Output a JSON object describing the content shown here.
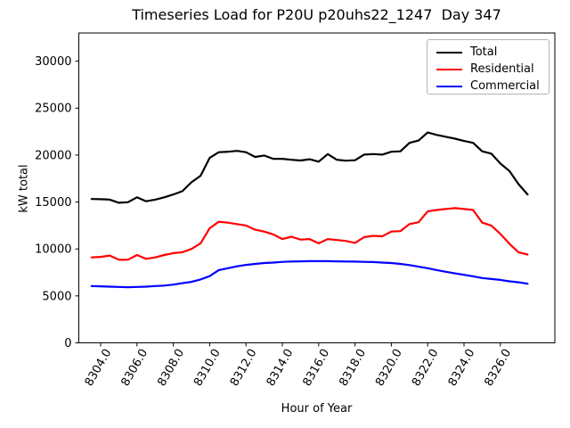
{
  "chart_data": {
    "type": "line",
    "title": "Timeseries Load for P20U p20uhs22_1247  Day 347",
    "xlabel": "Hour of Year",
    "ylabel": "kW total",
    "xlim": [
      8302.8,
      8329.0
    ],
    "ylim": [
      0,
      33000
    ],
    "grid": false,
    "xticks": [
      8304,
      8306,
      8308,
      8310,
      8312,
      8314,
      8316,
      8318,
      8320,
      8322,
      8324,
      8326
    ],
    "xtick_labels": [
      "8304.0",
      "8306.0",
      "8308.0",
      "8310.0",
      "8312.0",
      "8314.0",
      "8316.0",
      "8318.0",
      "8320.0",
      "8322.0",
      "8324.0",
      "8326.0"
    ],
    "yticks": [
      0,
      5000,
      10000,
      15000,
      20000,
      25000,
      30000
    ],
    "ytick_labels": [
      "0",
      "5000",
      "10000",
      "15000",
      "20000",
      "25000",
      "30000"
    ],
    "legend": {
      "position": "upper right",
      "entries": [
        {
          "label": "Total",
          "color": "#000000"
        },
        {
          "label": "Residential",
          "color": "#ff0000"
        },
        {
          "label": "Commercial",
          "color": "#0000ff"
        }
      ]
    },
    "x": [
      8303.5,
      8304.0,
      8304.5,
      8305.0,
      8305.5,
      8306.0,
      8306.5,
      8307.0,
      8307.5,
      8308.0,
      8308.5,
      8309.0,
      8309.5,
      8310.0,
      8310.5,
      8311.0,
      8311.5,
      8312.0,
      8312.5,
      8313.0,
      8313.5,
      8314.0,
      8314.5,
      8315.0,
      8315.5,
      8316.0,
      8316.5,
      8317.0,
      8317.5,
      8318.0,
      8318.5,
      8319.0,
      8319.5,
      8320.0,
      8320.5,
      8321.0,
      8321.5,
      8322.0,
      8322.5,
      8323.0,
      8323.5,
      8324.0,
      8324.5,
      8325.0,
      8325.5,
      8326.0,
      8326.5,
      8327.0,
      8327.5
    ],
    "series": [
      {
        "name": "Total",
        "color": "#000000",
        "values": [
          15320,
          15300,
          15250,
          14920,
          14980,
          15500,
          15080,
          15250,
          15500,
          15800,
          16150,
          17100,
          17800,
          19700,
          20300,
          20350,
          20450,
          20300,
          19800,
          19950,
          19600,
          19600,
          19500,
          19420,
          19550,
          19300,
          20100,
          19500,
          19400,
          19450,
          20050,
          20100,
          20050,
          20350,
          20400,
          21300,
          21550,
          22400,
          22150,
          21950,
          21750,
          21500,
          21300,
          20400,
          20150,
          19100,
          18300,
          16900,
          15800
        ]
      },
      {
        "name": "Residential",
        "color": "#ff0000",
        "values": [
          9100,
          9150,
          9300,
          8850,
          8850,
          9350,
          8950,
          9100,
          9350,
          9550,
          9650,
          10000,
          10600,
          12200,
          12900,
          12800,
          12650,
          12500,
          12050,
          11850,
          11550,
          11050,
          11300,
          11000,
          11050,
          10600,
          11050,
          10950,
          10850,
          10650,
          11250,
          11400,
          11350,
          11850,
          11900,
          12650,
          12850,
          14000,
          14150,
          14250,
          14350,
          14250,
          14150,
          12800,
          12500,
          11600,
          10550,
          9650,
          9400
        ]
      },
      {
        "name": "Commercial",
        "color": "#0000ff",
        "values": [
          6050,
          6020,
          5980,
          5950,
          5930,
          5950,
          5980,
          6050,
          6100,
          6200,
          6350,
          6500,
          6750,
          7100,
          7750,
          7950,
          8150,
          8300,
          8400,
          8500,
          8550,
          8620,
          8660,
          8680,
          8700,
          8700,
          8700,
          8680,
          8660,
          8650,
          8620,
          8600,
          8550,
          8500,
          8400,
          8280,
          8110,
          7950,
          7750,
          7570,
          7400,
          7250,
          7080,
          6900,
          6800,
          6700,
          6550,
          6450,
          6300
        ]
      }
    ]
  }
}
